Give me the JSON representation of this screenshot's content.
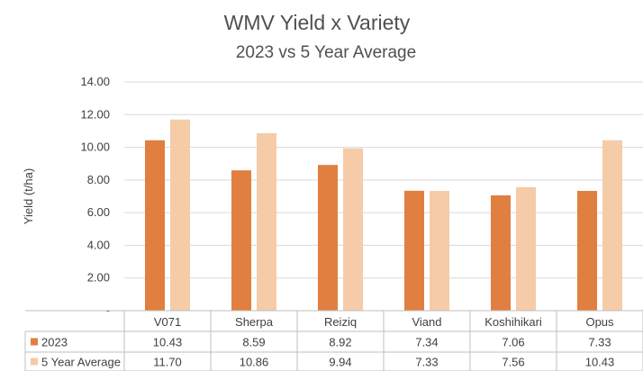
{
  "chart_data": {
    "type": "bar",
    "title": "WMV Yield x Variety",
    "subtitle": "2023 vs 5 Year Average",
    "ylabel": "Yield (t/ha)",
    "xlabel": "",
    "ylim": [
      0,
      14
    ],
    "yticks": [
      "-",
      "2.00",
      "4.00",
      "6.00",
      "8.00",
      "10.00",
      "12.00",
      "14.00"
    ],
    "categories": [
      "V071",
      "Sherpa",
      "Reiziq",
      "Viand",
      "Koshihikari",
      "Opus"
    ],
    "series": [
      {
        "name": "2023",
        "color": "#e07f3f",
        "values": [
          10.43,
          8.59,
          8.92,
          7.34,
          7.06,
          7.33
        ],
        "labels": [
          "10.43",
          "8.59",
          "8.92",
          "7.34",
          "7.06",
          "7.33"
        ]
      },
      {
        "name": "5 Year Average",
        "color": "#f5cba8",
        "values": [
          11.7,
          10.86,
          9.94,
          7.33,
          7.56,
          10.43
        ],
        "labels": [
          "11.70",
          "10.86",
          "9.94",
          "7.33",
          "7.56",
          "10.43"
        ]
      }
    ],
    "grid": true,
    "data_table": true
  }
}
